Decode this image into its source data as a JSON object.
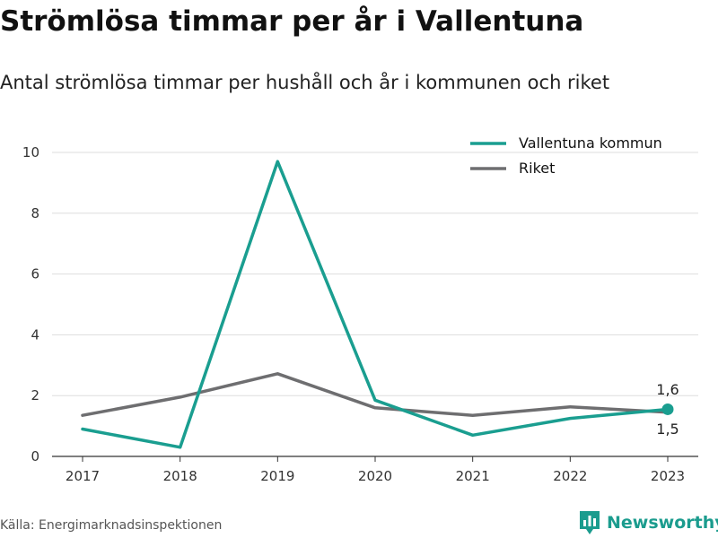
{
  "header": {
    "title": "Strömlösa timmar per år i Vallentuna",
    "subtitle": "Antal strömlösa timmar per hushåll och år i kommunen och riket"
  },
  "footer": {
    "source": "Källa: Energimarknadsinspektionen",
    "brand": "Newsworthy",
    "brand_icon": "bar-chart-logo-icon"
  },
  "chart_data": {
    "type": "line",
    "title": "Strömlösa timmar per år i Vallentuna",
    "subtitle": "Antal strömlösa timmar per hushåll och år i kommunen och riket",
    "categories": [
      "2017",
      "2018",
      "2019",
      "2020",
      "2021",
      "2022",
      "2023"
    ],
    "ylim": [
      0,
      10
    ],
    "yticks": [
      "0",
      "2",
      "4",
      "6",
      "8",
      "10"
    ],
    "grid": "horizontal",
    "legend_position": "top-right",
    "series": [
      {
        "name": "Vallentuna kommun",
        "color": "#1a9e90",
        "values": [
          0.9,
          0.3,
          9.7,
          1.85,
          0.7,
          1.25,
          1.55
        ]
      },
      {
        "name": "Riket",
        "color": "#6e6e70",
        "values": [
          1.35,
          1.95,
          2.72,
          1.6,
          1.35,
          1.63,
          1.45
        ]
      }
    ],
    "end_labels": {
      "upper": "1,6",
      "lower": "1,5"
    }
  }
}
